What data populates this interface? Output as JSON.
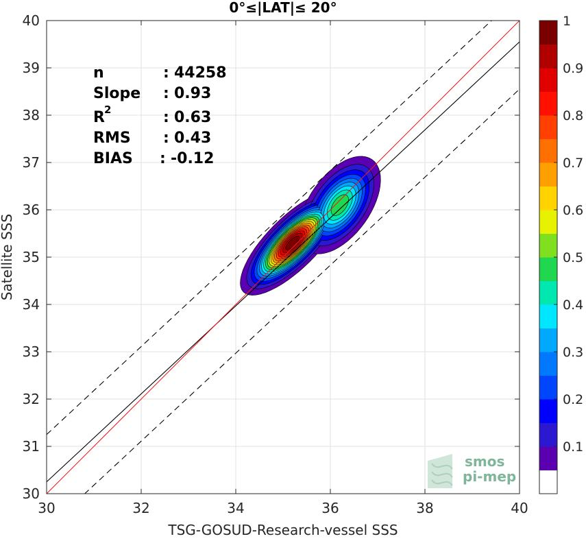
{
  "chart_data": {
    "type": "heatmap",
    "title": "0°≤|LAT|≤ 20°",
    "xlabel": "TSG-GOSUD-Research-vessel SSS",
    "ylabel": "Satellite SSS",
    "xlim": [
      30,
      40
    ],
    "ylim": [
      30,
      40
    ],
    "x_ticks": [
      "30",
      "32",
      "34",
      "36",
      "38",
      "40"
    ],
    "y_ticks": [
      "30",
      "31",
      "32",
      "33",
      "34",
      "35",
      "36",
      "37",
      "38",
      "39",
      "40"
    ],
    "grid": true,
    "stats": {
      "n": "44258",
      "slope": "0.93",
      "r2": "0.63",
      "rms": "0.43",
      "bias": "-0.12",
      "labels": {
        "n": "n",
        "slope": "Slope",
        "r2_base": "R",
        "r2_sup": "2",
        "rms": "RMS",
        "bias": "BIAS"
      }
    },
    "lines": {
      "identity": {
        "slope": 1,
        "intercept": 0,
        "color": "#e02020"
      },
      "fit": {
        "slope": 0.93,
        "intercept": 2.35,
        "color": "#000000"
      },
      "upper_bound": {
        "slope": 0.93,
        "intercept": 3.35,
        "dashed": true
      },
      "lower_bound": {
        "slope": 0.93,
        "intercept": 1.35,
        "dashed": true
      }
    },
    "density_peaks": [
      {
        "x": 35.2,
        "y": 35.3,
        "max_level": 1.0
      },
      {
        "x": 36.2,
        "y": 36.1,
        "max_level": 0.5
      }
    ],
    "colorbar": {
      "range": [
        0,
        1
      ],
      "tick_labels": [
        "0.1",
        "0.2",
        "0.3",
        "0.4",
        "0.5",
        "0.6",
        "0.7",
        "0.8",
        "0.9",
        "1"
      ],
      "tick_values": [
        0.1,
        0.2,
        0.3,
        0.4,
        0.5,
        0.6,
        0.7,
        0.8,
        0.9,
        1.0
      ],
      "colors": [
        "#ffffff",
        "#5a00b0",
        "#2b18d0",
        "#0000ff",
        "#0046ff",
        "#0078ff",
        "#00a8ff",
        "#00e6ff",
        "#00e8b0",
        "#20d850",
        "#80e020",
        "#e6f200",
        "#ffd200",
        "#ffa000",
        "#ff7000",
        "#ff4000",
        "#ff1000",
        "#e00000",
        "#b00000",
        "#7a0000"
      ]
    }
  },
  "logo": {
    "line1": "smos",
    "line2": "pi-mep"
  }
}
